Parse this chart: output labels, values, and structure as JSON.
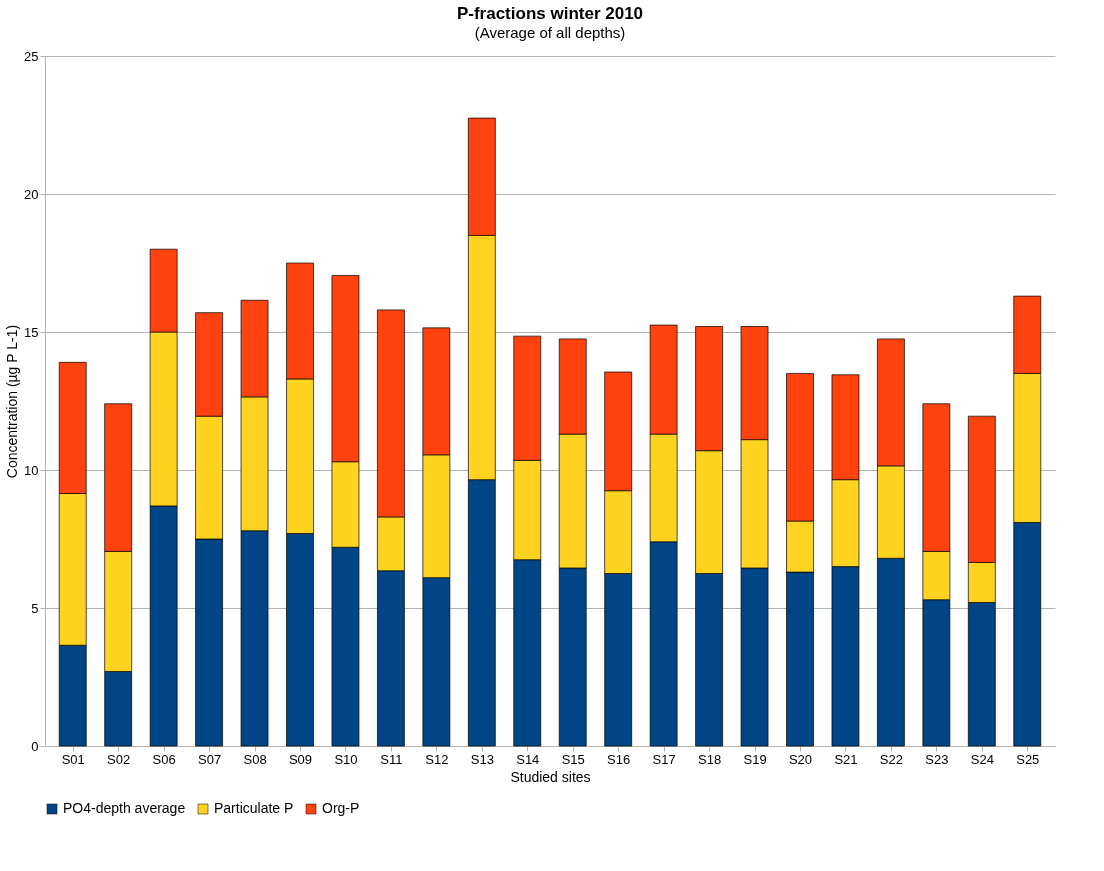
{
  "chart_data": {
    "type": "bar",
    "title": "P-fractions winter 2010",
    "subtitle": "(Average of all depths)",
    "xlabel": "Studied sites",
    "ylabel": "Concentration (µg P L-1)",
    "categories": [
      "S01",
      "S02",
      "S06",
      "S07",
      "S08",
      "S09",
      "S10",
      "S11",
      "S12",
      "S13",
      "S14",
      "S15",
      "S16",
      "S17",
      "S18",
      "S19",
      "S20",
      "S21",
      "S22",
      "S23",
      "S24",
      "S25"
    ],
    "stacked": true,
    "series": [
      {
        "name": "PO4-depth average",
        "color": "#004586",
        "values": [
          3.65,
          2.7,
          8.7,
          7.5,
          7.8,
          7.7,
          7.2,
          6.35,
          6.1,
          9.65,
          6.75,
          6.45,
          6.25,
          7.4,
          6.25,
          6.45,
          6.3,
          6.5,
          6.8,
          5.3,
          5.2,
          8.1
        ]
      },
      {
        "name": "Particulate P",
        "color": "#ffd320",
        "values": [
          5.5,
          4.35,
          6.3,
          4.45,
          4.85,
          5.6,
          3.1,
          1.95,
          4.45,
          8.85,
          3.6,
          4.85,
          3.0,
          3.9,
          4.45,
          4.65,
          1.85,
          3.15,
          3.35,
          1.75,
          1.45,
          5.4
        ]
      },
      {
        "name": "Org-P",
        "color": "#ff420e",
        "values": [
          4.75,
          5.35,
          3.0,
          3.75,
          3.5,
          4.2,
          6.75,
          7.5,
          4.6,
          4.25,
          4.5,
          3.45,
          4.3,
          3.95,
          4.5,
          4.1,
          5.35,
          3.8,
          4.6,
          5.35,
          5.3,
          2.8
        ]
      }
    ],
    "ylim": [
      0,
      25
    ],
    "yticks": [
      0,
      5,
      10,
      15,
      20,
      25
    ],
    "grid": "y",
    "legend": "bottom"
  }
}
